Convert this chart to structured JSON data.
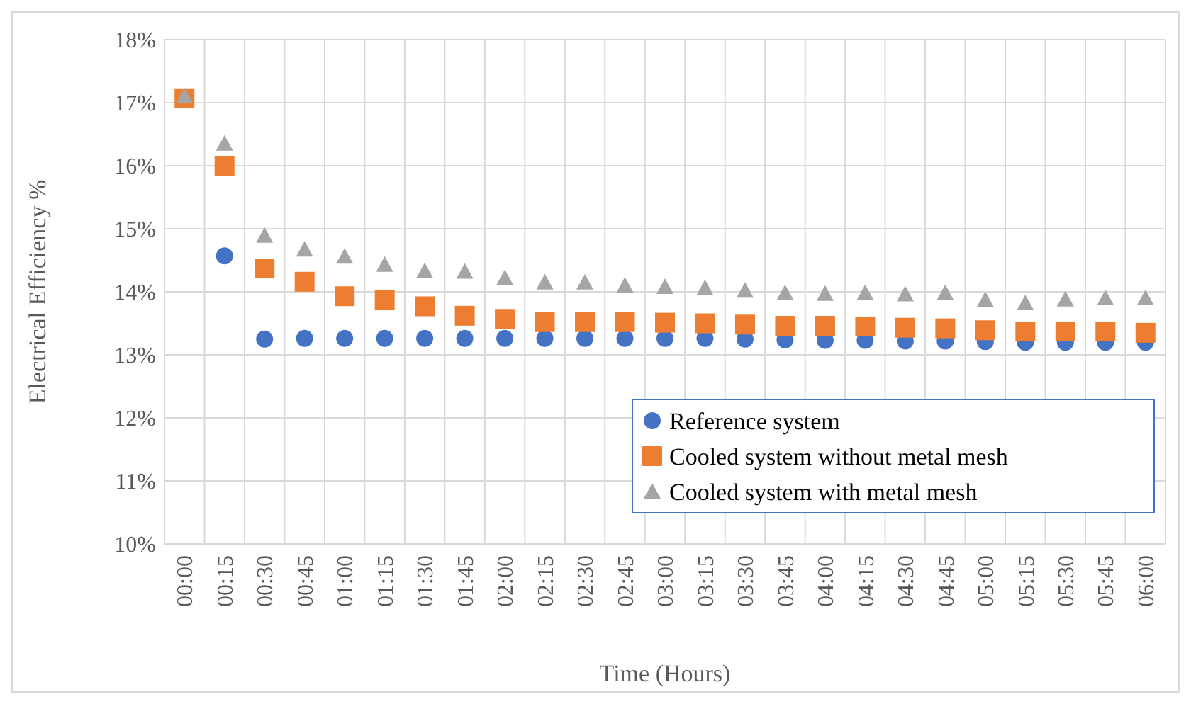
{
  "chart_data": {
    "type": "scatter",
    "xlabel": "Time (Hours)",
    "ylabel": "Electrical Efficiency %",
    "categories": [
      "00:00",
      "00:15",
      "00:30",
      "00:45",
      "01:00",
      "01:15",
      "01:30",
      "01:45",
      "02:00",
      "02:15",
      "02:30",
      "02:45",
      "03:00",
      "03:15",
      "03:30",
      "03:45",
      "04:00",
      "04:15",
      "04:30",
      "04:45",
      "05:00",
      "05:15",
      "05:30",
      "05:45",
      "06:00"
    ],
    "ylim": [
      10,
      18
    ],
    "yticks": [
      {
        "value": 10,
        "label": "10%"
      },
      {
        "value": 11,
        "label": "11%"
      },
      {
        "value": 12,
        "label": "12%"
      },
      {
        "value": 13,
        "label": "13%"
      },
      {
        "value": 14,
        "label": "14%"
      },
      {
        "value": 15,
        "label": "15%"
      },
      {
        "value": 16,
        "label": "16%"
      },
      {
        "value": 17,
        "label": "17%"
      },
      {
        "value": 18,
        "label": "18%"
      }
    ],
    "grid": true,
    "legend": "bottom right",
    "series": [
      {
        "name": "Reference system",
        "color": "#4472c4",
        "marker": "circle",
        "values": [
          null,
          14.57,
          13.25,
          13.26,
          13.26,
          13.26,
          13.26,
          13.26,
          13.26,
          13.26,
          13.26,
          13.26,
          13.26,
          13.26,
          13.25,
          13.24,
          13.23,
          13.23,
          13.22,
          13.22,
          13.21,
          13.2,
          13.2,
          13.2,
          13.2
        ]
      },
      {
        "name": "Cooled system without metal mesh",
        "color": "#ed7d31",
        "marker": "square",
        "values": [
          17.07,
          16.0,
          14.37,
          14.16,
          13.93,
          13.87,
          13.77,
          13.62,
          13.57,
          13.52,
          13.52,
          13.52,
          13.51,
          13.5,
          13.48,
          13.46,
          13.46,
          13.45,
          13.43,
          13.42,
          13.39,
          13.37,
          13.37,
          13.37,
          13.35
        ]
      },
      {
        "name": "Cooled system with metal mesh",
        "color": "#a5a5a5",
        "marker": "triangle",
        "values": [
          17.1,
          16.35,
          14.89,
          14.67,
          14.56,
          14.43,
          14.33,
          14.32,
          14.22,
          14.15,
          14.15,
          14.1,
          14.08,
          14.06,
          14.02,
          13.98,
          13.97,
          13.98,
          13.96,
          13.98,
          13.87,
          13.82,
          13.88,
          13.9,
          13.9
        ]
      }
    ]
  }
}
